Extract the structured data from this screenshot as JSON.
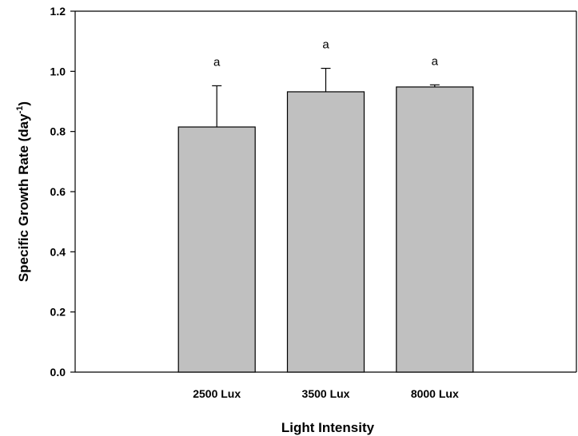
{
  "chart_data": {
    "type": "bar",
    "categories": [
      "2500 Lux",
      "3500 Lux",
      "8000 Lux"
    ],
    "values": [
      0.815,
      0.932,
      0.948
    ],
    "error_upper": [
      0.952,
      1.01,
      0.955
    ],
    "significance_labels": [
      "a",
      "a",
      "a"
    ],
    "xlabel": "Light Intensity",
    "ylabel": "Specific Growth Rate (day",
    "ylabel_superscript": "-1",
    "ylabel_suffix": ")",
    "ylim": [
      0,
      1.2
    ],
    "yticks": [
      "0.0",
      "0.2",
      "0.4",
      "0.6",
      "0.8",
      "1.0",
      "1.2"
    ],
    "bar_color": "#c0c0c0",
    "bar_edge_color": "#000000",
    "grid": false,
    "legend": "none"
  }
}
